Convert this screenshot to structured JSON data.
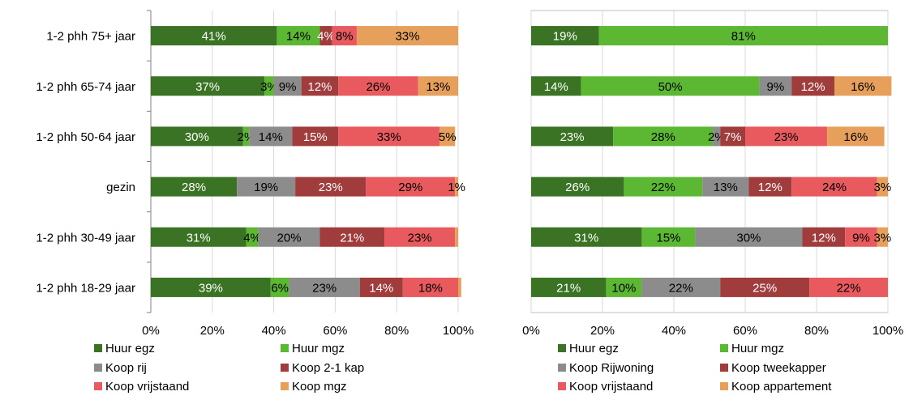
{
  "chart_data": [
    {
      "type": "bar",
      "orientation": "horizontal",
      "stacked": true,
      "categories": [
        "1-2 phh 75+ jaar",
        "1-2 phh 65-74 jaar",
        "1-2 phh 50-64 jaar",
        "gezin",
        "1-2 phh 30-49 jaar",
        "1-2 phh 18-29 jaar"
      ],
      "series": [
        {
          "name": "Huur egz",
          "color": "#3a7324",
          "values": [
            41,
            37,
            30,
            28,
            31,
            39
          ]
        },
        {
          "name": "Huur mgz",
          "color": "#5cb833",
          "values": [
            14,
            3,
            2,
            0,
            4,
            6
          ]
        },
        {
          "name": "Koop rij",
          "color": "#8c8c8c",
          "values": [
            0,
            9,
            14,
            19,
            20,
            23
          ]
        },
        {
          "name": "Koop 2-1 kap",
          "color": "#a03c3c",
          "values": [
            4,
            12,
            15,
            23,
            21,
            14
          ]
        },
        {
          "name": "Koop vrijstaand",
          "color": "#e85a5e",
          "values": [
            8,
            26,
            33,
            29,
            23,
            18
          ]
        },
        {
          "name": "Koop mgz",
          "color": "#e6a05c",
          "values": [
            33,
            13,
            5,
            1,
            1,
            1
          ]
        }
      ],
      "data_labels": [
        [
          "41%",
          "14%",
          "",
          "4%",
          "8%",
          "33%"
        ],
        [
          "37%",
          "3%",
          "9%",
          "12%",
          "26%",
          "13%"
        ],
        [
          "30%",
          "2%",
          "14%",
          "15%",
          "33%",
          "5%"
        ],
        [
          "28%",
          "",
          "19%",
          "23%",
          "29%",
          "1%"
        ],
        [
          "31%",
          "4%",
          "20%",
          "21%",
          "23%",
          ""
        ],
        [
          "39%",
          "6%",
          "23%",
          "14%",
          "18%",
          ""
        ]
      ],
      "xlim": [
        0,
        100
      ],
      "xticks": [
        "0%",
        "20%",
        "40%",
        "60%",
        "80%",
        "100%"
      ],
      "legend": "bottom"
    },
    {
      "type": "bar",
      "orientation": "horizontal",
      "stacked": true,
      "series": [
        {
          "name": "Huur egz",
          "color": "#3a7324",
          "values": [
            19,
            14,
            23,
            26,
            31,
            21
          ]
        },
        {
          "name": "Huur mgz",
          "color": "#5cb833",
          "values": [
            81,
            50,
            28,
            22,
            15,
            10
          ]
        },
        {
          "name": "Koop Rijwoning",
          "color": "#8c8c8c",
          "values": [
            0,
            9,
            2,
            13,
            30,
            22
          ]
        },
        {
          "name": "Koop tweekapper",
          "color": "#a03c3c",
          "values": [
            0,
            12,
            7,
            12,
            12,
            25
          ]
        },
        {
          "name": "Koop vrijstaand",
          "color": "#e85a5e",
          "values": [
            0,
            0,
            23,
            24,
            9,
            22
          ]
        },
        {
          "name": "Koop appartement",
          "color": "#e6a05c",
          "values": [
            0,
            16,
            16,
            3,
            3,
            0
          ]
        }
      ],
      "data_labels": [
        [
          "19%",
          "81%",
          "",
          "",
          "",
          ""
        ],
        [
          "14%",
          "50%",
          "9%",
          "12%",
          "",
          "16%"
        ],
        [
          "23%",
          "28%",
          "2%",
          "7%",
          "23%",
          "16%"
        ],
        [
          "26%",
          "22%",
          "13%",
          "12%",
          "24%",
          "3%"
        ],
        [
          "31%",
          "15%",
          "30%",
          "12%",
          "9%",
          "3%"
        ],
        [
          "21%",
          "10%",
          "22%",
          "25%",
          "22%",
          ""
        ]
      ],
      "xlim": [
        0,
        100
      ],
      "xticks": [
        "0%",
        "20%",
        "40%",
        "60%",
        "80%",
        "100%"
      ],
      "legend": "bottom"
    }
  ]
}
